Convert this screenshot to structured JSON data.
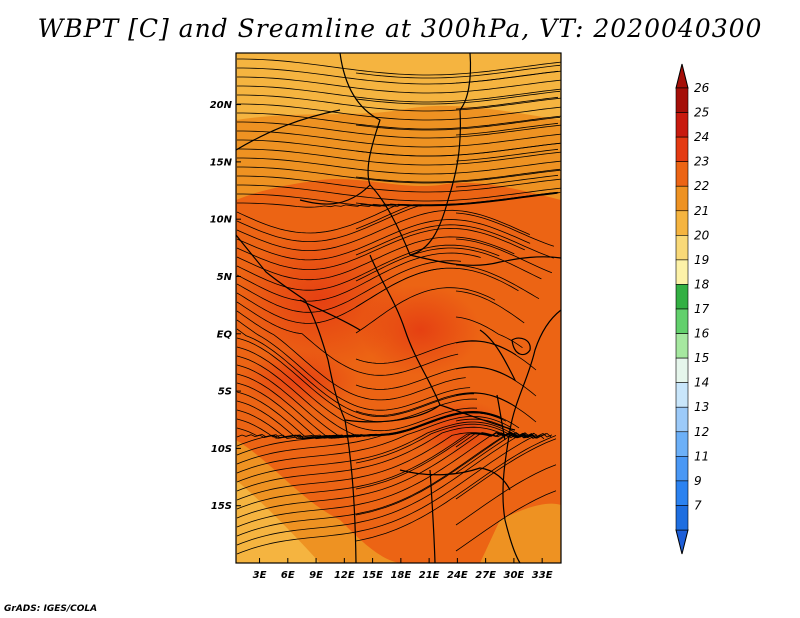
{
  "title": "WBPT [C] and Sreamline at 300hPa, VT: 2020040300",
  "credit": "GrADS: IGES/COLA",
  "map": {
    "lat_labels": [
      "20N",
      "15N",
      "10N",
      "5N",
      "EQ",
      "5S",
      "10S",
      "15S"
    ],
    "lat_values": [
      20,
      15,
      10,
      5,
      0,
      -5,
      -10,
      -15
    ],
    "lon_labels": [
      "3E",
      "6E",
      "9E",
      "12E",
      "15E",
      "18E",
      "21E",
      "24E",
      "27E",
      "30E",
      "33E"
    ],
    "lon_values": [
      3,
      6,
      9,
      12,
      15,
      18,
      21,
      24,
      27,
      30,
      33
    ],
    "lon_range": [
      0.5,
      35
    ],
    "lat_range": [
      -20,
      24.5
    ],
    "field": "WBPT",
    "units": "C",
    "level": "300hPa",
    "valid_time": "2020040300"
  },
  "colorbar": {
    "labels": [
      "7",
      "9",
      "11",
      "12",
      "13",
      "14",
      "15",
      "16",
      "17",
      "18",
      "19",
      "20",
      "21",
      "22",
      "23",
      "24",
      "25",
      "26"
    ],
    "colors": [
      "#1e6ee0",
      "#2b82f0",
      "#4a98f5",
      "#6cb0f8",
      "#9ccaf9",
      "#c9e6fb",
      "#e6f6ec",
      "#a6e8a0",
      "#62d06c",
      "#33b043",
      "#fdf2a8",
      "#f9d978",
      "#f5b440",
      "#ee9222",
      "#ec6414",
      "#e43a12",
      "#c81a0e",
      "#a50f08"
    ],
    "low_color": "#1e5fd8",
    "high_color": "#a50f08"
  }
}
